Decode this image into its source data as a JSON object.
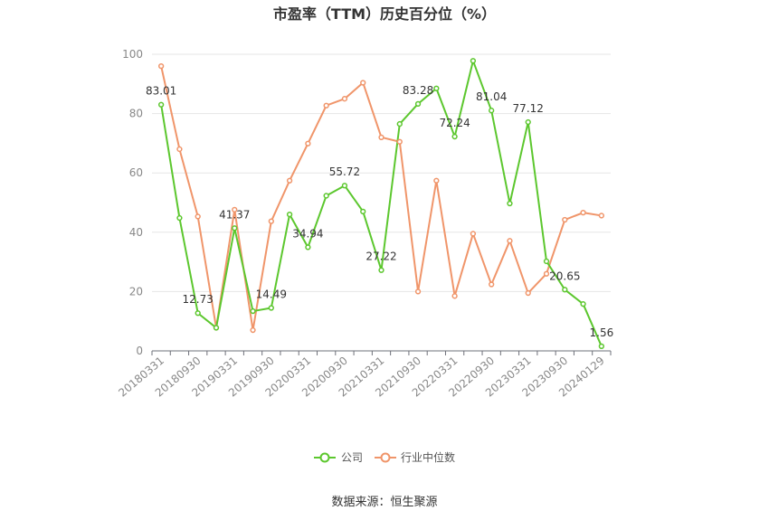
{
  "chart_data": {
    "type": "line",
    "title": "市盈率（TTM）历史百分位（%）",
    "source": "数据来源：恒生聚源",
    "ylim": [
      0,
      100
    ],
    "yticks": [
      "0",
      "20",
      "40",
      "60",
      "80",
      "100"
    ],
    "grid": true,
    "legend_position": "bottom",
    "x": [
      "20180331",
      "20180630",
      "20180930",
      "20181231",
      "20190331",
      "20190630",
      "20190930",
      "20191231",
      "20200331",
      "20200630",
      "20200930",
      "20201231",
      "20210331",
      "20210630",
      "20210930",
      "20211231",
      "20220331",
      "20220630",
      "20220930",
      "20221231",
      "20230331",
      "20230630",
      "20230930",
      "20231231",
      "20240129"
    ],
    "xtick_labels": [
      "20180331",
      "20180930",
      "20190331",
      "20190930",
      "20200331",
      "20200930",
      "20210331",
      "20210930",
      "20220331",
      "20220930",
      "20230331",
      "20230930",
      "20240129"
    ],
    "series": [
      {
        "name": "公司",
        "color": "#5cc72e",
        "values": [
          83.01,
          44.8,
          12.73,
          7.8,
          41.37,
          13.4,
          14.49,
          46.0,
          34.94,
          52.3,
          55.72,
          47.0,
          27.22,
          76.5,
          83.28,
          88.5,
          72.24,
          97.8,
          81.04,
          49.7,
          77.12,
          30.2,
          20.65,
          15.8,
          1.56
        ],
        "labels": [
          "83.01",
          null,
          "12.73",
          null,
          "41.37",
          null,
          "14.49",
          null,
          "34.94",
          null,
          "55.72",
          null,
          "27.22",
          null,
          "83.28",
          null,
          "72.24",
          null,
          "81.04",
          null,
          "77.12",
          null,
          "20.65",
          null,
          "1.56"
        ]
      },
      {
        "name": "行业中位数",
        "color": "#f0956a",
        "values": [
          96.0,
          68.0,
          45.3,
          7.8,
          47.6,
          7.0,
          43.7,
          57.4,
          69.9,
          82.7,
          85.0,
          90.4,
          72.0,
          70.5,
          20.0,
          57.4,
          18.5,
          39.5,
          22.4,
          37.1,
          19.5,
          26.0,
          44.2,
          46.6,
          45.6
        ]
      }
    ]
  }
}
